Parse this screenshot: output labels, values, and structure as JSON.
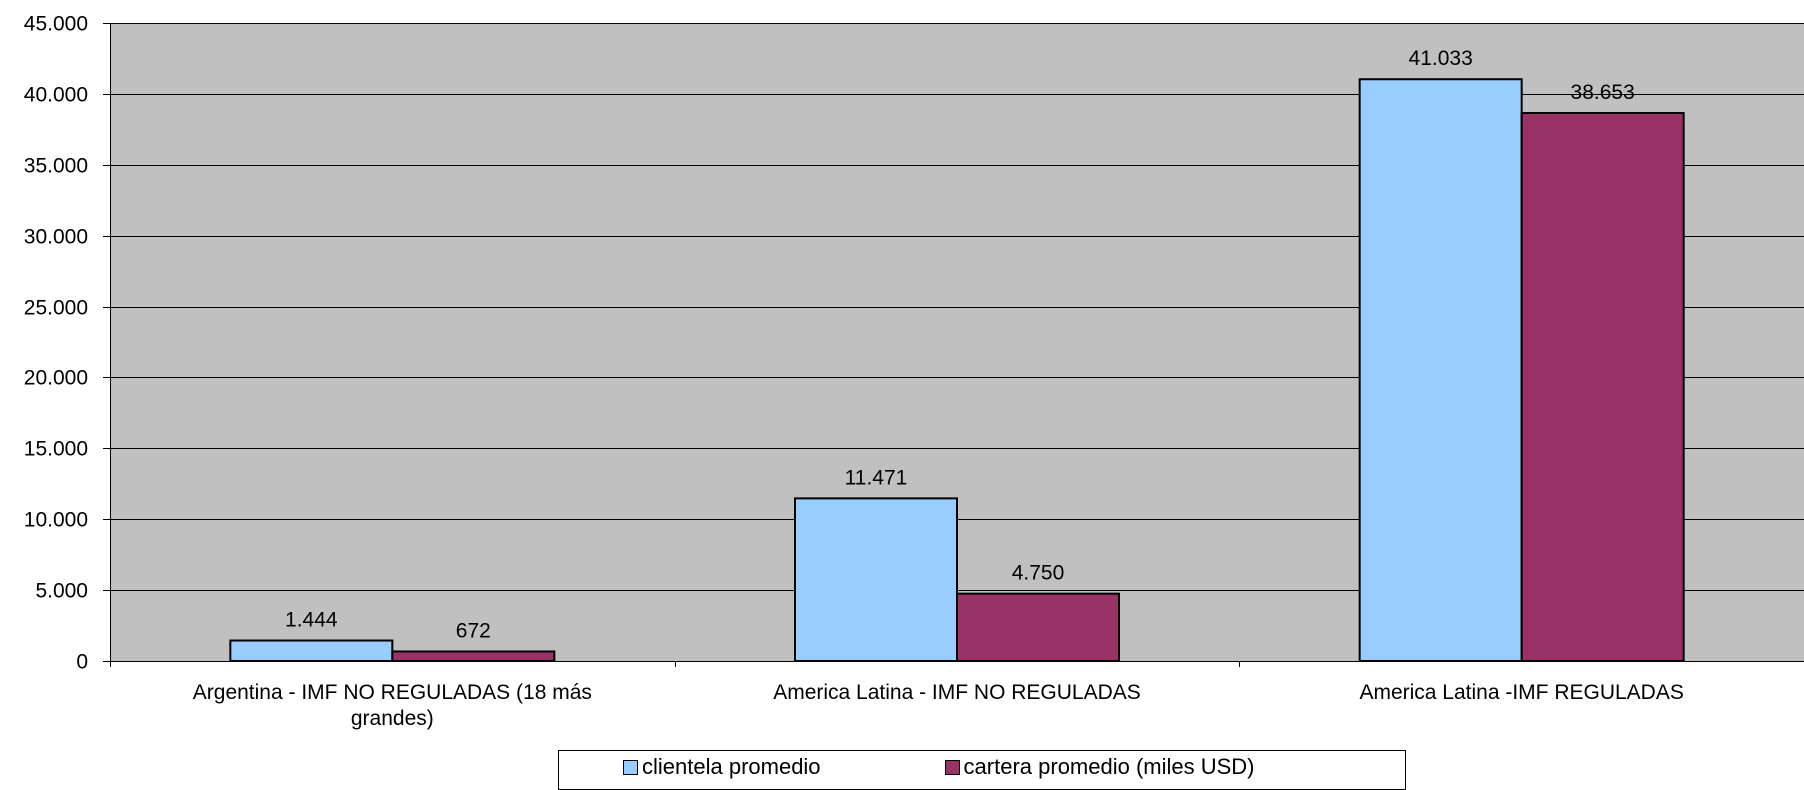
{
  "chart_data": {
    "type": "bar",
    "categories": [
      [
        "Argentina - IMF NO REGULADAS (18 más",
        "grandes)"
      ],
      [
        "America Latina - IMF NO REGULADAS"
      ],
      [
        "America Latina -IMF REGULADAS"
      ]
    ],
    "series": [
      {
        "name": "clientela promedio",
        "values": [
          1444,
          11471,
          41033
        ],
        "labels": [
          "1.444",
          "11.471",
          "41.033"
        ],
        "color": "#99CCFF"
      },
      {
        "name": "cartera promedio (miles USD)",
        "values": [
          672,
          4750,
          38653
        ],
        "labels": [
          "672",
          "4.750",
          "38.653"
        ],
        "color": "#993366"
      }
    ],
    "ylim": [
      0,
      45000
    ],
    "yticks": [
      0,
      5000,
      10000,
      15000,
      20000,
      25000,
      30000,
      35000,
      40000,
      45000
    ],
    "ytick_labels": [
      "0",
      "5.000",
      "10.000",
      "15.000",
      "20.000",
      "25.000",
      "30.000",
      "35.000",
      "40.000",
      "45.000"
    ],
    "plot_background": "#C0C0C0",
    "grid": true,
    "legend_position": "bottom"
  }
}
